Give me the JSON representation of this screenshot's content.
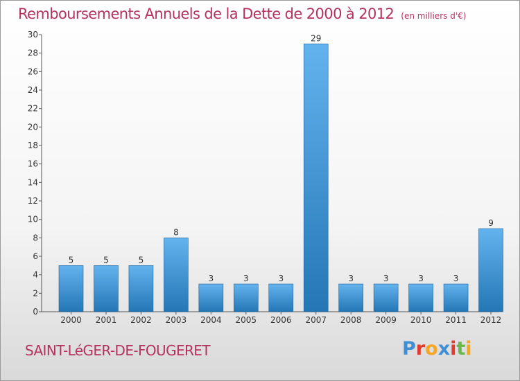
{
  "title": "Remboursements Annuels de la Dette de 2000 à 2012",
  "subtitle": "(en milliers d'€)",
  "town": "SAINT-LéGER-DE-FOUGERET",
  "logo": {
    "text": "Proxiti",
    "letters": [
      {
        "char": "P",
        "color": "#3e8fd6"
      },
      {
        "char": "r",
        "color": "#e23a2c"
      },
      {
        "char": "o",
        "color": "#f5a623"
      },
      {
        "char": "x",
        "color": "#3e8fd6"
      },
      {
        "char": "i",
        "color": "#e23a2c"
      },
      {
        "char": "t",
        "color": "#6ab84a"
      },
      {
        "char": "i",
        "color": "#f5a623"
      }
    ]
  },
  "colors": {
    "bar_light": "#63b3ee",
    "bar_dark": "#2476b5",
    "title": "#b5325e"
  },
  "chart_data": {
    "type": "bar",
    "categories": [
      "2000",
      "2001",
      "2002",
      "2003",
      "2004",
      "2005",
      "2006",
      "2007",
      "2008",
      "2009",
      "2010",
      "2011",
      "2012"
    ],
    "values": [
      5,
      5,
      5,
      8,
      3,
      3,
      3,
      29,
      3,
      3,
      3,
      3,
      9
    ],
    "ylim": [
      0,
      30
    ],
    "yticks": [
      0,
      2,
      4,
      6,
      8,
      10,
      12,
      14,
      16,
      18,
      20,
      22,
      24,
      26,
      28,
      30
    ],
    "grid": false,
    "data_labels": true
  }
}
